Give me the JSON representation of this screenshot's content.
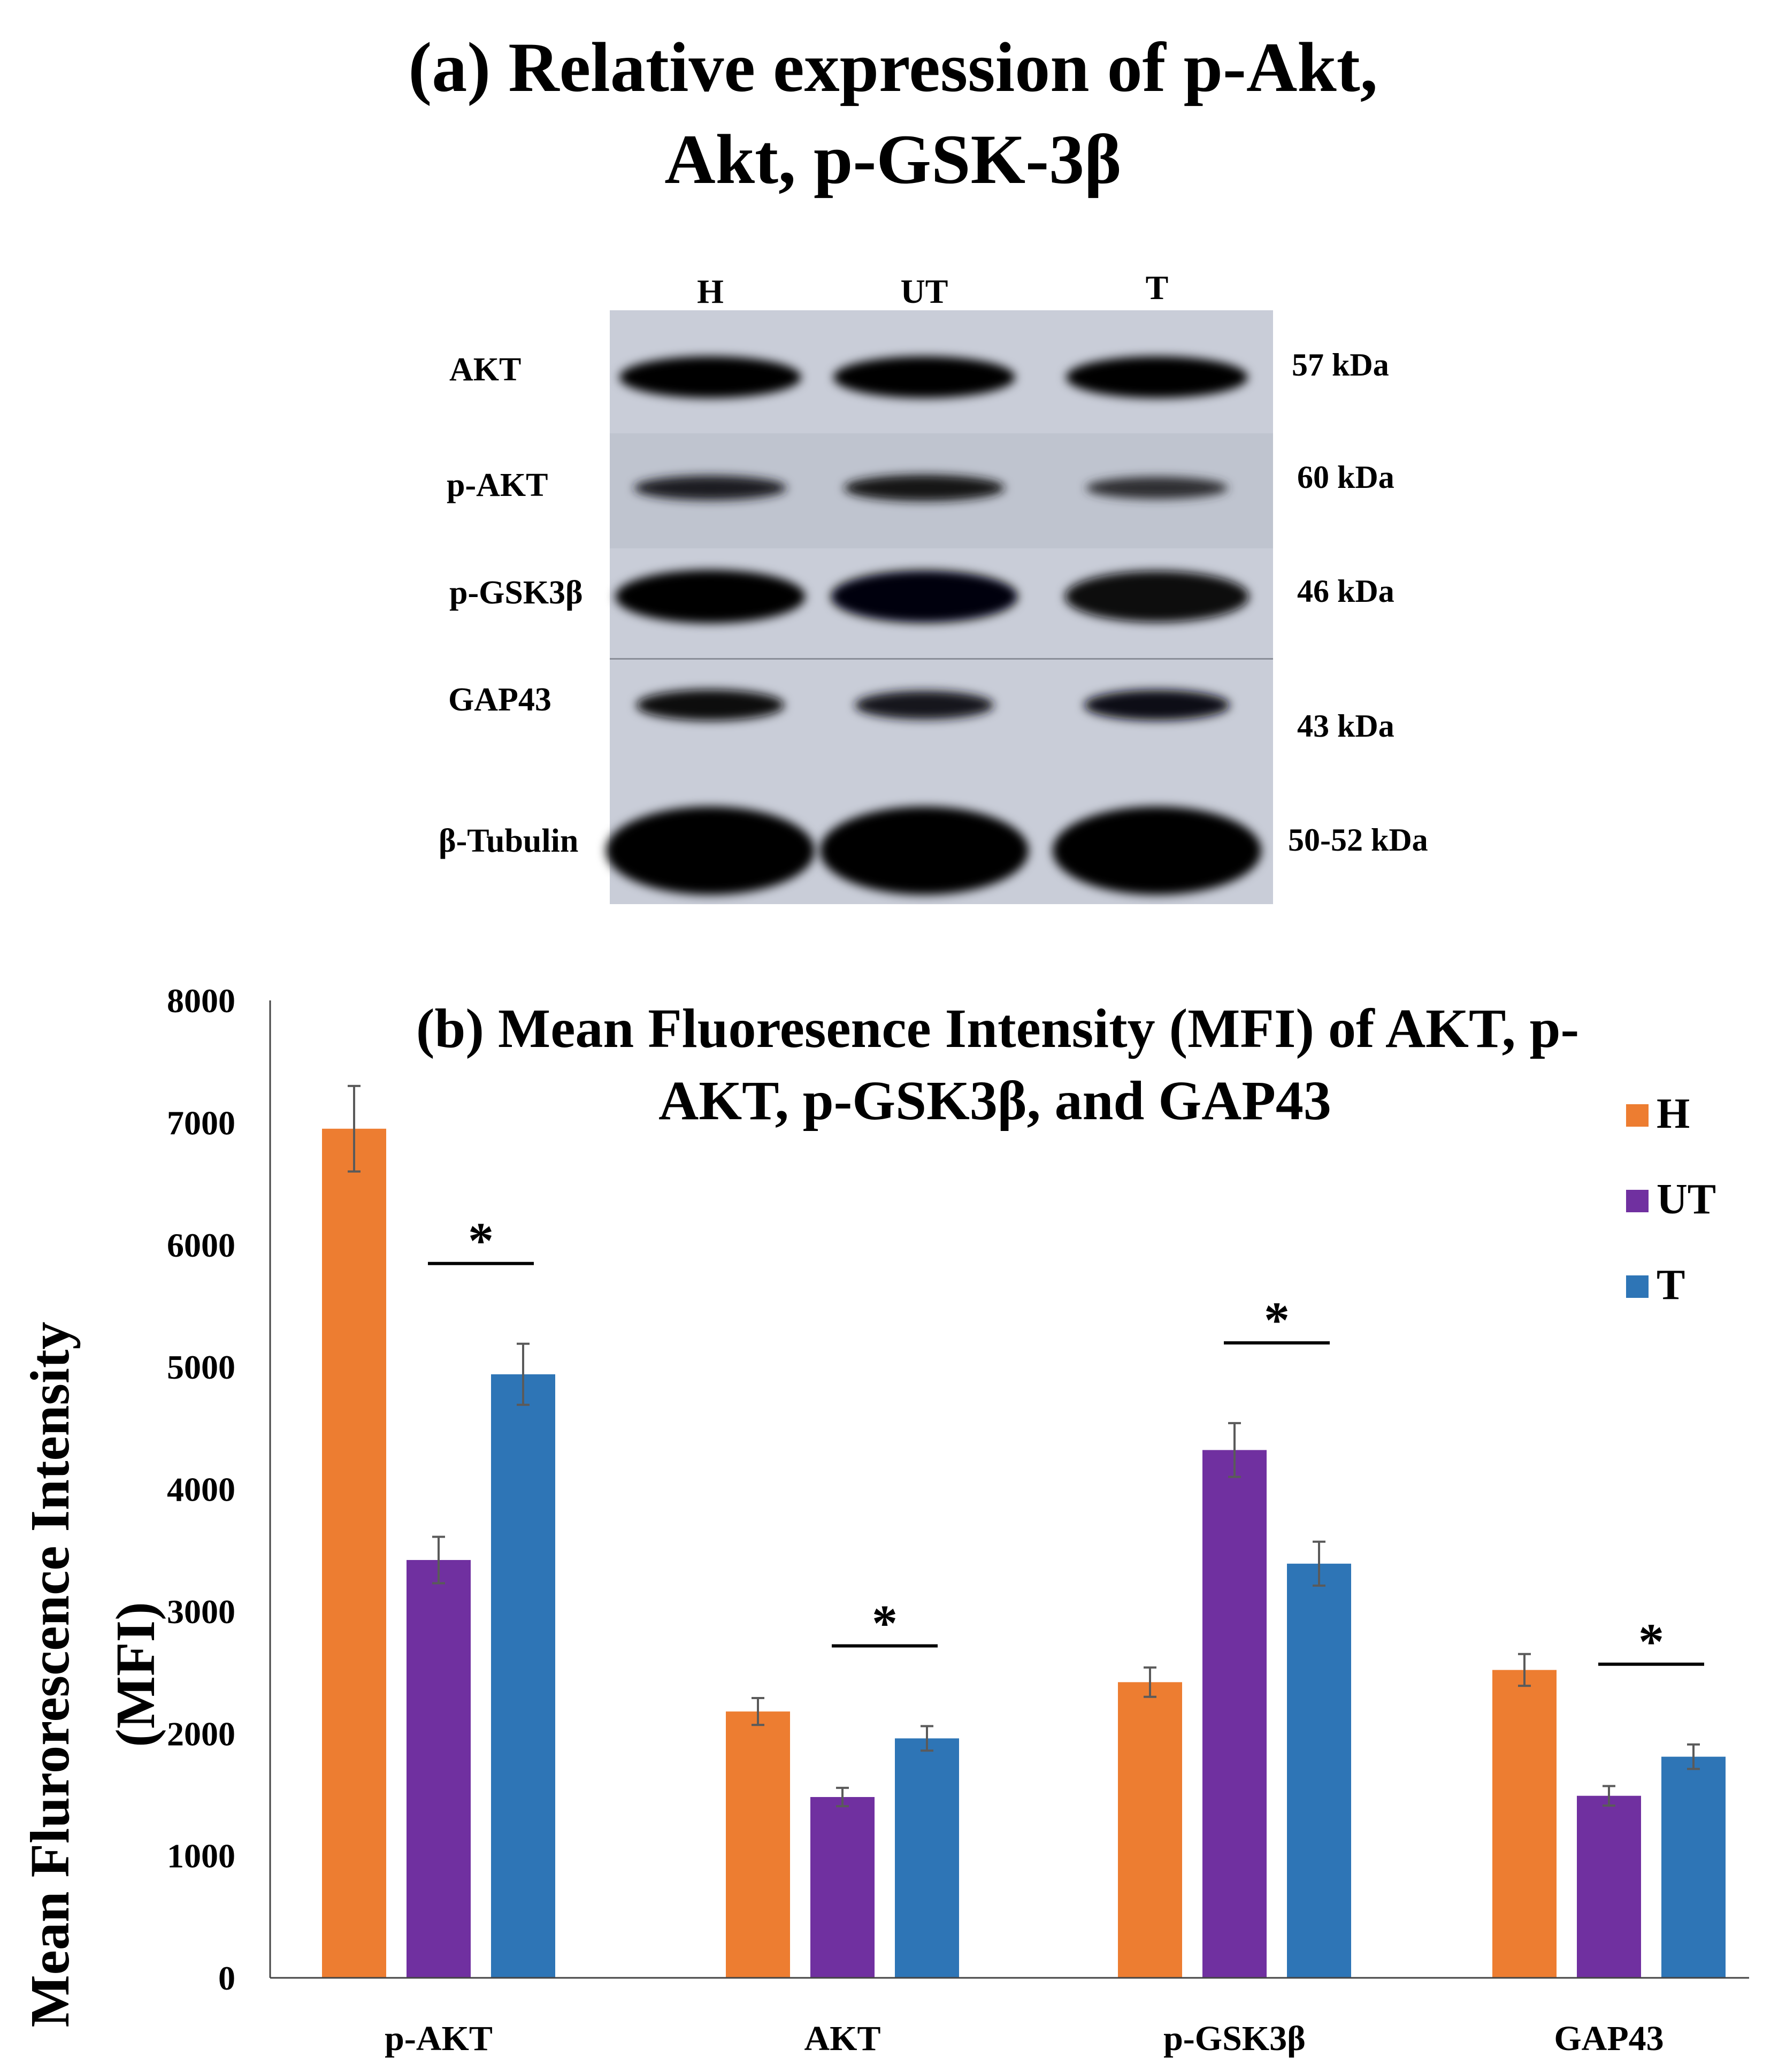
{
  "panel_a": {
    "title_line1": "(a) Relative expression of p-Akt,",
    "title_line2": "Akt, p-GSK-3β",
    "lanes": [
      "H",
      "UT",
      "T"
    ],
    "rows": [
      {
        "protein": "AKT",
        "size": "57 kDa",
        "intensity": [
          1.0,
          1.0,
          1.0
        ]
      },
      {
        "protein": "p-AKT",
        "size": "60 kDa",
        "intensity": [
          0.55,
          0.7,
          0.35
        ]
      },
      {
        "protein": "p-GSK3β",
        "size": "46 kDa",
        "intensity": [
          1.0,
          0.95,
          0.9
        ]
      },
      {
        "protein": "GAP43",
        "size": "43 kDa",
        "intensity": [
          0.85,
          0.65,
          0.8
        ]
      },
      {
        "protein": "β-Tubulin",
        "size": "50-52 kDa",
        "intensity": [
          1.0,
          1.0,
          1.0
        ]
      }
    ]
  },
  "chart_data": {
    "type": "bar",
    "title_line1": "(b) Mean Fluoresence Intensity (MFI) of AKT, p-",
    "title_line2": "AKT, p-GSK3β, and GAP43",
    "ylabel_line1": "Mean Flurorescence Intensity",
    "ylabel_line2": "(MFI)",
    "xlabel": "",
    "categories": [
      "p-AKT",
      "AKT",
      "p-GSK3β",
      "GAP43"
    ],
    "ylim": [
      0,
      8000
    ],
    "yticks": [
      0,
      1000,
      2000,
      3000,
      4000,
      5000,
      6000,
      7000,
      8000
    ],
    "grid": false,
    "legend_position": "top-right",
    "series": [
      {
        "name": "H",
        "color": "#ED7D31",
        "values": [
          6950,
          2180,
          2420,
          2520
        ],
        "errors": [
          350,
          110,
          120,
          130
        ]
      },
      {
        "name": "UT",
        "color": "#7030A0",
        "values": [
          3420,
          1480,
          4320,
          1490
        ],
        "errors": [
          190,
          75,
          220,
          80
        ]
      },
      {
        "name": "T",
        "color": "#2E75B6",
        "values": [
          4940,
          1960,
          3390,
          1810
        ],
        "errors": [
          250,
          100,
          180,
          100
        ]
      }
    ],
    "significance": [
      {
        "category": "p-AKT",
        "pair": [
          "UT",
          "T"
        ],
        "label": "*"
      },
      {
        "category": "AKT",
        "pair": [
          "UT",
          "T"
        ],
        "label": "*"
      },
      {
        "category": "p-GSK3β",
        "pair": [
          "UT",
          "T"
        ],
        "label": "*"
      },
      {
        "category": "GAP43",
        "pair": [
          "UT",
          "T"
        ],
        "label": "*"
      }
    ]
  }
}
